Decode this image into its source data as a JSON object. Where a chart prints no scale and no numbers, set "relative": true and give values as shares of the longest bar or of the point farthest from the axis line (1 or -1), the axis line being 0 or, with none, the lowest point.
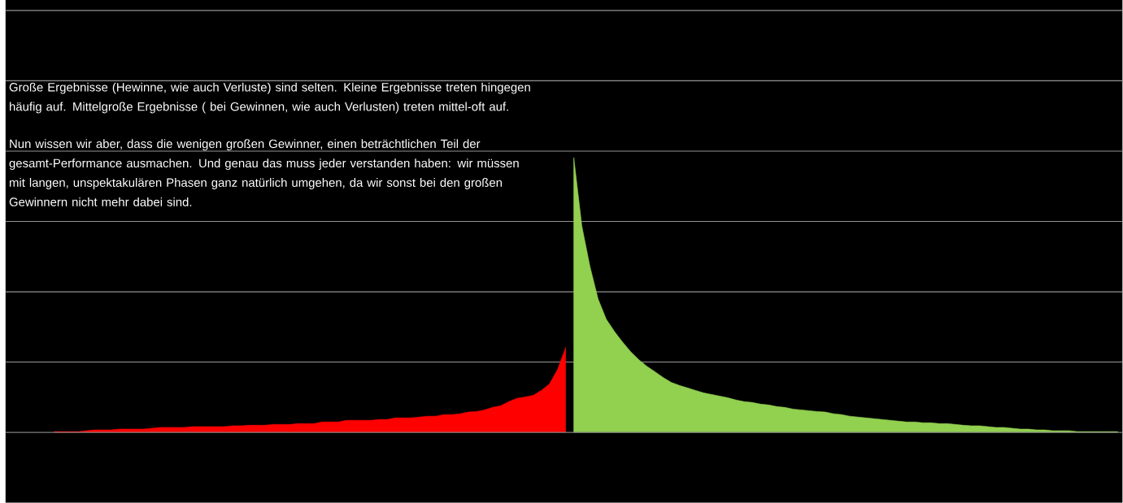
{
  "chart_data": {
    "type": "area",
    "relative": true,
    "grid": true,
    "annotations": [
      "Große Ergebnisse (Hewinne, wie auch Verluste) sind selten. Kleine Ergebnisse treten hingegen häufig auf. Mittelgroße Ergebnisse ( bei Gewinnen, wie auch Verlusten) treten mittel-oft auf.",
      "Nun wissen wir aber, dass die wenigen großen Gewinner, einen beträchtlichen Teil der gesamt-Performance ausmachen. Und genau das muss jeder verstanden haben: wir müssen mit langen, unspektakulären Phasen ganz natürlich umgehen, da wir sonst bei den großen Gewinnern nicht mehr dabei sind."
    ],
    "categories": [
      null,
      null,
      null,
      null,
      null,
      null,
      null,
      null,
      null,
      null,
      null,
      null,
      null,
      null,
      null,
      null,
      null,
      null,
      null,
      null,
      null,
      null,
      null,
      null,
      null,
      null,
      null,
      null,
      null,
      null,
      null,
      null,
      null,
      null,
      null,
      null,
      null,
      null,
      null,
      null,
      null,
      null,
      null,
      null,
      null,
      null,
      null,
      null,
      null,
      null,
      null,
      null,
      null,
      null,
      null,
      null,
      null,
      null,
      null,
      null,
      null,
      null,
      null,
      null,
      null,
      null,
      null,
      null,
      null,
      null,
      null,
      null,
      null,
      null,
      null,
      null,
      null,
      null,
      null,
      null,
      null,
      null,
      null,
      null,
      null,
      null,
      null,
      null,
      null,
      null,
      null,
      null,
      null,
      null,
      null,
      null,
      null,
      null,
      null,
      null,
      null,
      null,
      null,
      null,
      null,
      null,
      null,
      null,
      null,
      null,
      null,
      null,
      null,
      null,
      null,
      null,
      null,
      null,
      null,
      null,
      null,
      null,
      null,
      null,
      null,
      null,
      null,
      null,
      null,
      null,
      null,
      null
    ],
    "series": [
      {
        "color": "#ff0000",
        "values": [
          0.003,
          0.003,
          0.003,
          0.003,
          0.006,
          0.009,
          0.009,
          0.009,
          0.012,
          0.012,
          0.012,
          0.012,
          0.015,
          0.018,
          0.018,
          0.018,
          0.018,
          0.021,
          0.021,
          0.021,
          0.021,
          0.021,
          0.024,
          0.024,
          0.026,
          0.026,
          0.026,
          0.029,
          0.029,
          0.029,
          0.032,
          0.032,
          0.032,
          0.038,
          0.038,
          0.038,
          0.044,
          0.044,
          0.044,
          0.044,
          0.047,
          0.047,
          0.053,
          0.053,
          0.053,
          0.056,
          0.059,
          0.059,
          0.065,
          0.065,
          0.068,
          0.074,
          0.076,
          0.082,
          0.091,
          0.097,
          0.112,
          0.124,
          0.129,
          0.135,
          0.153,
          0.176,
          0.229,
          0.309,
          null,
          null,
          null,
          null,
          null,
          null,
          null,
          null,
          null,
          null,
          null,
          null,
          null,
          null,
          null,
          null,
          null,
          null,
          null,
          null,
          null,
          null,
          null,
          null,
          null,
          null,
          null,
          null,
          null,
          null,
          null,
          null,
          null,
          null,
          null,
          null,
          null,
          null,
          null,
          null,
          null,
          null,
          null,
          null,
          null,
          null,
          null,
          null,
          null,
          null,
          null,
          null,
          null,
          null,
          null,
          null,
          null,
          null,
          null,
          null,
          null,
          null,
          null,
          null,
          null,
          null,
          null,
          null
        ]
      },
      {
        "color": "#92d050",
        "values": [
          null,
          null,
          null,
          null,
          null,
          null,
          null,
          null,
          null,
          null,
          null,
          null,
          null,
          null,
          null,
          null,
          null,
          null,
          null,
          null,
          null,
          null,
          null,
          null,
          null,
          null,
          null,
          null,
          null,
          null,
          null,
          null,
          null,
          null,
          null,
          null,
          null,
          null,
          null,
          null,
          null,
          null,
          null,
          null,
          null,
          null,
          null,
          null,
          null,
          null,
          null,
          null,
          null,
          null,
          null,
          null,
          null,
          null,
          null,
          null,
          null,
          null,
          null,
          null,
          1,
          0.75,
          0.603,
          0.485,
          0.412,
          0.368,
          0.329,
          0.294,
          0.265,
          0.241,
          0.221,
          0.2,
          0.182,
          0.171,
          0.162,
          0.153,
          0.144,
          0.138,
          0.132,
          0.126,
          0.118,
          0.112,
          0.109,
          0.103,
          0.1,
          0.094,
          0.091,
          0.085,
          0.082,
          0.079,
          0.076,
          0.074,
          0.068,
          0.065,
          0.059,
          0.056,
          0.053,
          0.05,
          0.047,
          0.044,
          0.041,
          0.038,
          0.038,
          0.035,
          0.035,
          0.032,
          0.032,
          0.029,
          0.026,
          0.024,
          0.024,
          0.021,
          0.018,
          0.018,
          0.015,
          0.012,
          0.012,
          0.009,
          0.009,
          0.006,
          0.006,
          0.006,
          0.003,
          0.003,
          0.003,
          0.003,
          0.003,
          0.003
        ]
      }
    ]
  }
}
